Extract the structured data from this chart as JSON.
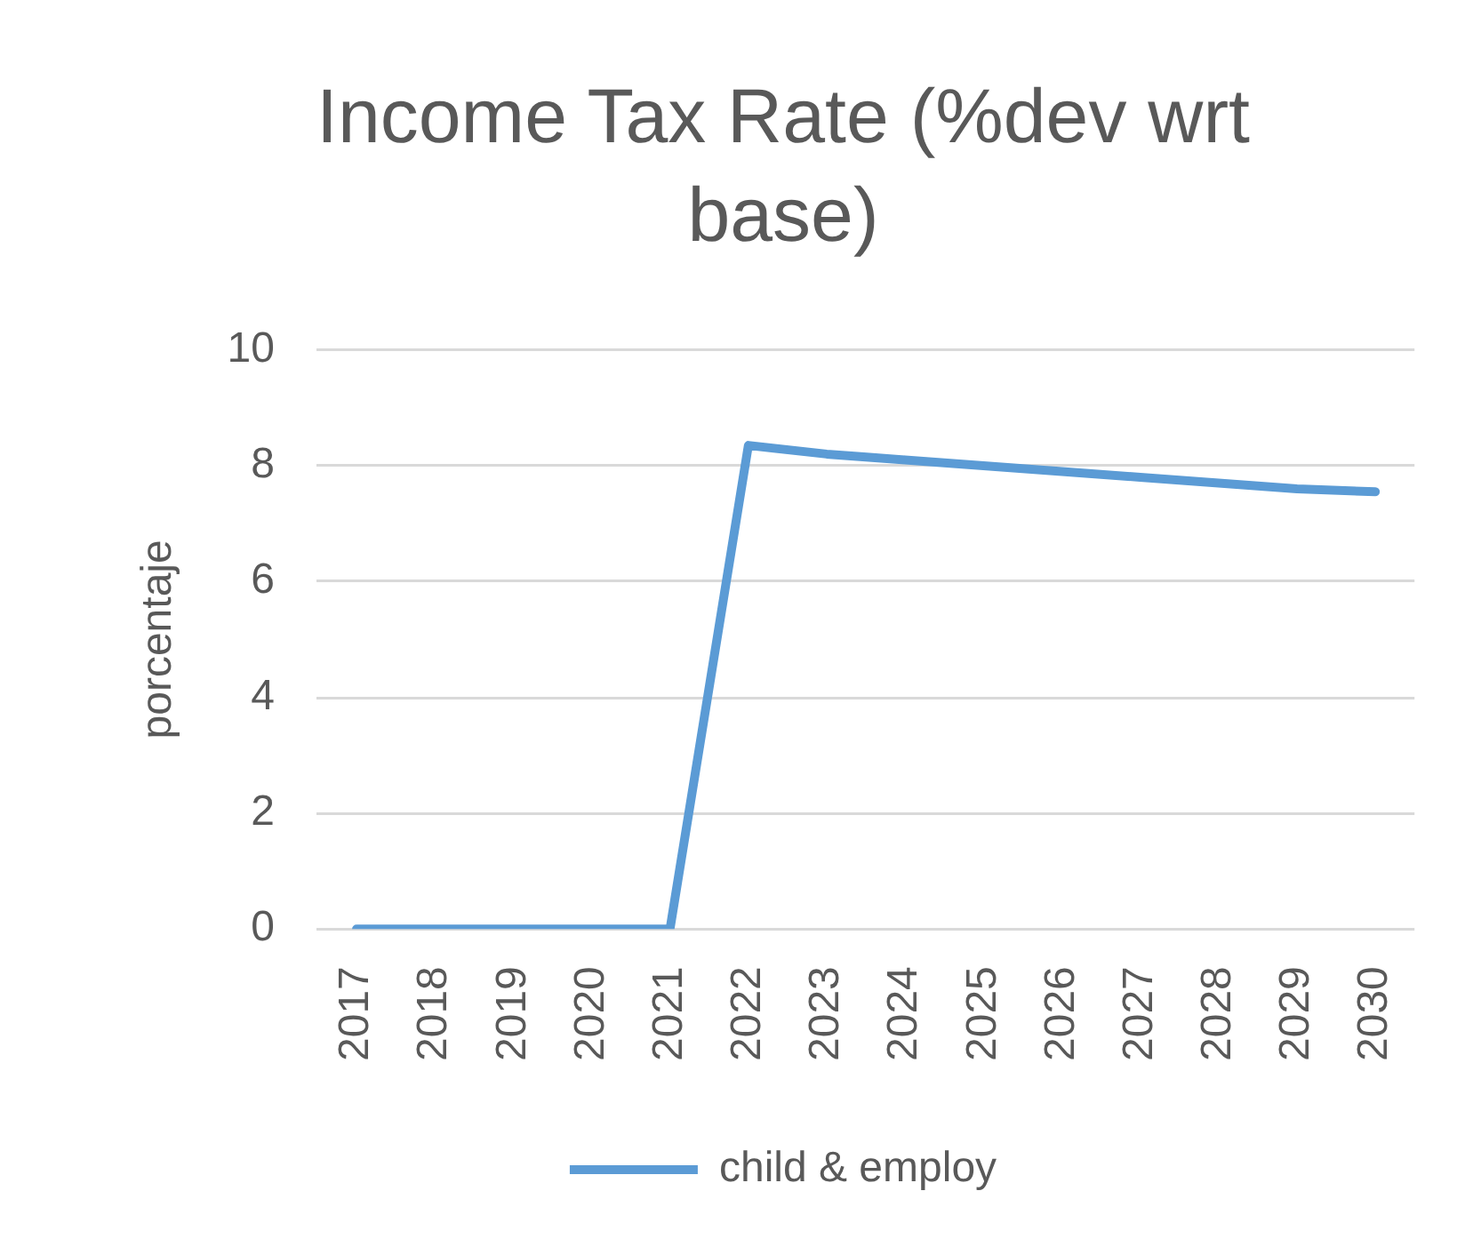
{
  "chart_data": {
    "type": "line",
    "title": "Income Tax Rate (%dev wrt base)",
    "ylabel": "porcentaje",
    "categories": [
      "2017",
      "2018",
      "2019",
      "2020",
      "2021",
      "2022",
      "2023",
      "2024",
      "2025",
      "2026",
      "2027",
      "2028",
      "2029",
      "2030"
    ],
    "series": [
      {
        "name": "child & employ",
        "color": "#5b9bd5",
        "values": [
          0,
          0,
          0,
          0,
          0,
          8.35,
          8.2,
          8.1,
          8.0,
          7.9,
          7.8,
          7.7,
          7.6,
          7.55
        ]
      }
    ],
    "ylim": [
      0,
      10
    ],
    "yticks": [
      0,
      2,
      4,
      6,
      8,
      10
    ],
    "grid": "y",
    "legend": "bottom",
    "marker": "none"
  }
}
